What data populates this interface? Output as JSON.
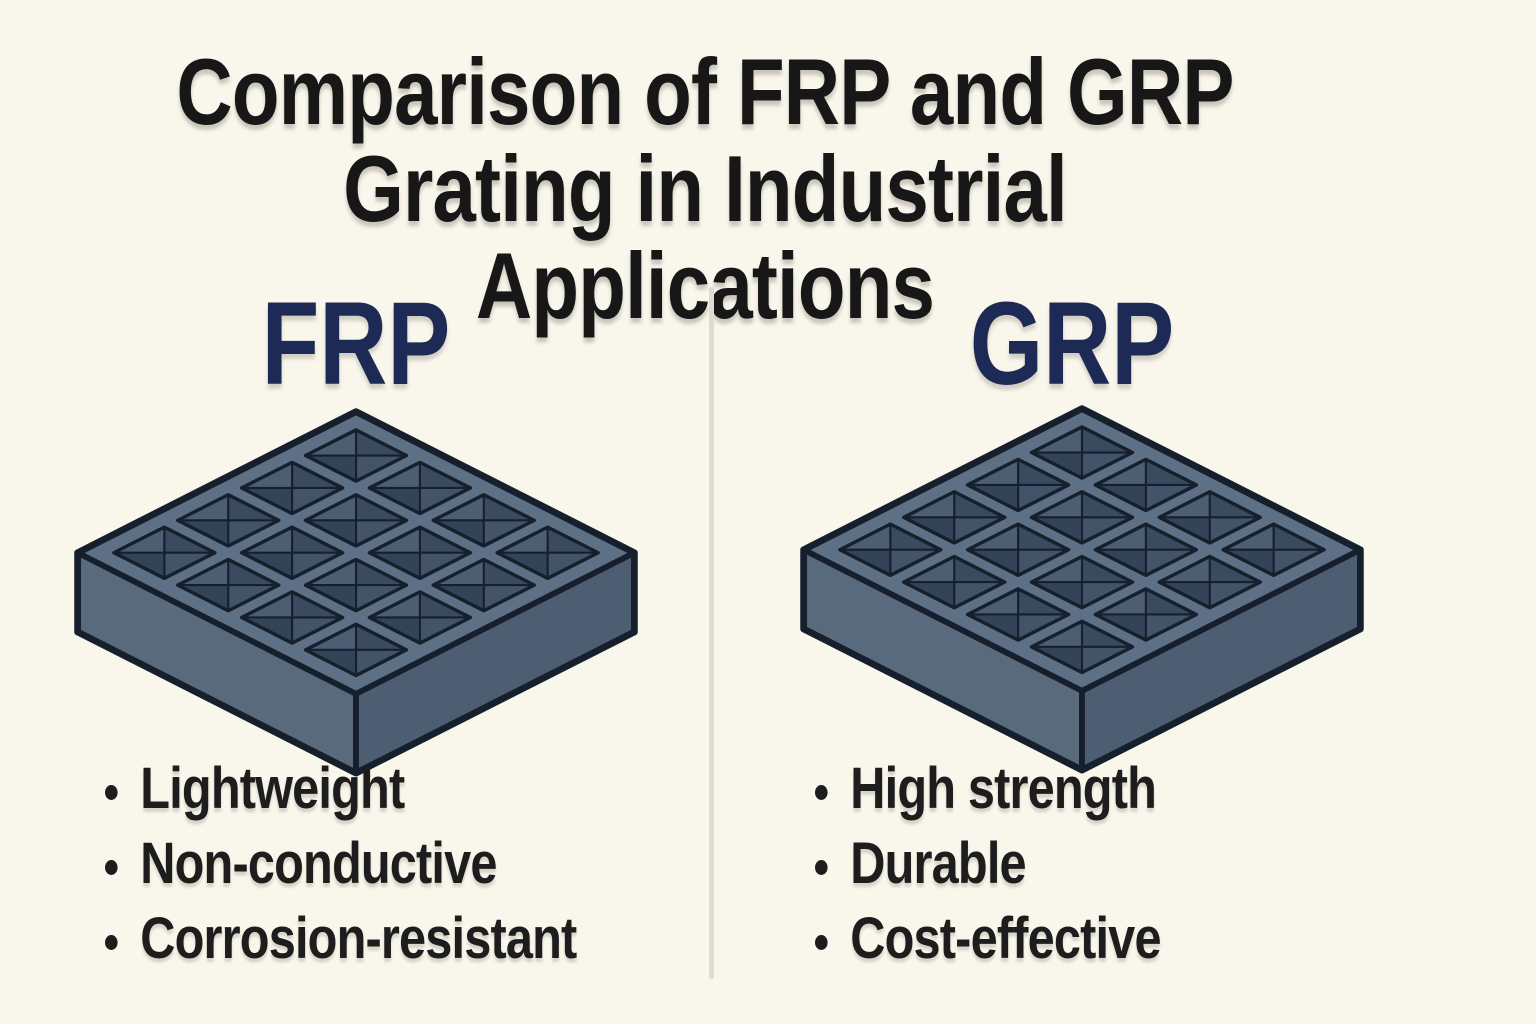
{
  "title": {
    "line1": "Comparison of FRP and GRP",
    "line2": "Grating in Industrial Applications"
  },
  "columns": [
    {
      "heading": "FRP",
      "illustration": "isometric-grating-panel-4x4",
      "bullets": [
        "Lightweight",
        "Non-conductive",
        "Corrosion-resistant"
      ]
    },
    {
      "heading": "GRP",
      "illustration": "isometric-grating-panel-4x4",
      "bullets": [
        "High strength",
        "Durable",
        "Cost-effective"
      ]
    }
  ],
  "colors": {
    "background": "#f9f6ec",
    "title_text": "#171717",
    "heading_navy": "#1c2a55",
    "bullet_text": "#1d1d1d",
    "divider": "#dedbd2",
    "grating": {
      "outline": "#161f2c",
      "top": "#5e7086",
      "side_left": "#596a7d",
      "side_right": "#4e5e72",
      "facet_nw": "#4d5e74",
      "facet_ne": "#3a4a5f",
      "facet_se": "#42536a",
      "facet_sw": "#344458"
    }
  }
}
